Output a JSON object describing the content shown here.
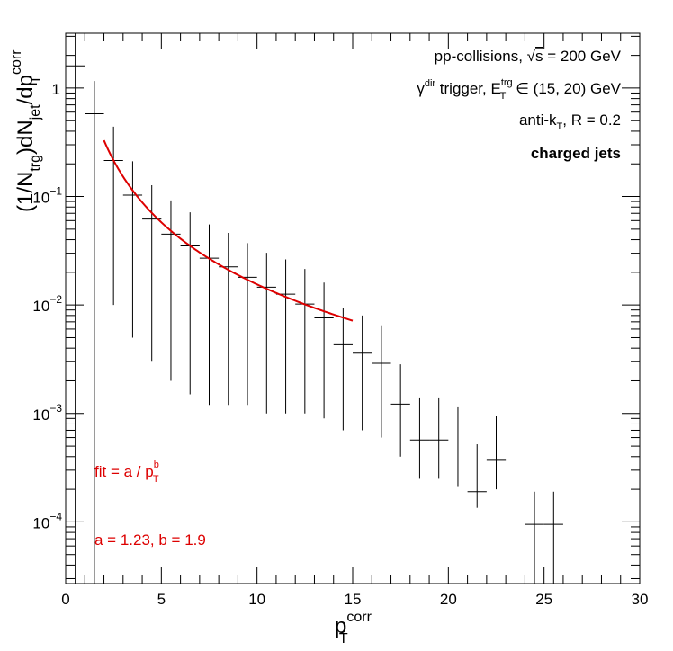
{
  "chart_data": {
    "type": "scatter",
    "xlim": [
      0,
      30
    ],
    "ylim": [
      2.7e-05,
      3.2
    ],
    "y_scale": "log",
    "grid": false,
    "x_ticks": [
      0,
      5,
      10,
      15,
      20,
      25,
      30
    ],
    "x_tick_labels": [
      "0",
      "5",
      "10",
      "15",
      "20",
      "25",
      "30"
    ],
    "y_ticks": [
      0.0001,
      0.001,
      0.01,
      0.1,
      1
    ],
    "y_tick_labels": [
      {
        "base": "10",
        "exp": "−4"
      },
      {
        "base": "10",
        "exp": "−3"
      },
      {
        "base": "10",
        "exp": "−2"
      },
      {
        "base": "10",
        "exp": "−1"
      },
      {
        "base": "1",
        "exp": ""
      }
    ],
    "xlabel": {
      "main": "p",
      "sub": "T",
      "sup": "corr"
    },
    "ylabel": {
      "p1": "(1/N",
      "s1": "trg",
      "p2": ")dN",
      "s2": "jet",
      "p3": "/dp",
      "s3": "T",
      "sup": "corr"
    },
    "series": [
      {
        "marker": "cross",
        "color": "#000000",
        "points": [
          {
            "x": 0.5,
            "y": 1.6,
            "xerr": 0.5,
            "yerr": [
              1.6,
              1.6
            ]
          },
          {
            "x": 1.5,
            "y": 0.58,
            "xerr": 0.5,
            "yerr": [
              0.58,
              0.58
            ]
          },
          {
            "x": 2.5,
            "y": 0.215,
            "xerr": 0.5,
            "yerr": [
              0.205,
              0.226
            ]
          },
          {
            "x": 3.5,
            "y": 0.103,
            "xerr": 0.5,
            "yerr": [
              0.098,
              0.108
            ]
          },
          {
            "x": 4.5,
            "y": 0.062,
            "xerr": 0.5,
            "yerr": [
              0.059,
              0.065
            ]
          },
          {
            "x": 5.5,
            "y": 0.045,
            "xerr": 0.5,
            "yerr": [
              0.043,
              0.047
            ]
          },
          {
            "x": 6.5,
            "y": 0.035,
            "xerr": 0.5,
            "yerr": [
              0.0335,
              0.0365
            ]
          },
          {
            "x": 7.5,
            "y": 0.027,
            "xerr": 0.5,
            "yerr": [
              0.0258,
              0.0282
            ]
          },
          {
            "x": 8.5,
            "y": 0.0225,
            "xerr": 0.5,
            "yerr": [
              0.0213,
              0.0237
            ]
          },
          {
            "x": 9.5,
            "y": 0.018,
            "xerr": 0.5,
            "yerr": [
              0.0168,
              0.0192
            ]
          },
          {
            "x": 10.5,
            "y": 0.0146,
            "xerr": 0.5,
            "yerr": [
              0.0136,
              0.0157
            ]
          },
          {
            "x": 11.5,
            "y": 0.0126,
            "xerr": 0.5,
            "yerr": [
              0.0116,
              0.0137
            ]
          },
          {
            "x": 12.5,
            "y": 0.0102,
            "xerr": 0.5,
            "yerr": [
              0.0092,
              0.0113
            ]
          },
          {
            "x": 13.5,
            "y": 0.0076,
            "xerr": 0.5,
            "yerr": [
              0.0067,
              0.0085
            ]
          },
          {
            "x": 14.5,
            "y": 0.0043,
            "xerr": 0.5,
            "yerr": [
              0.0036,
              0.0051
            ]
          },
          {
            "x": 15.5,
            "y": 0.0036,
            "xerr": 0.5,
            "yerr": [
              0.0029,
              0.0044
            ]
          },
          {
            "x": 16.5,
            "y": 0.0029,
            "xerr": 0.5,
            "yerr": [
              0.0023,
              0.0036
            ]
          },
          {
            "x": 17.5,
            "y": 0.00122,
            "xerr": 0.5,
            "yerr": [
              0.00082,
              0.00162
            ]
          },
          {
            "x": 18.5,
            "y": 0.00057,
            "xerr": 0.5,
            "yerr": [
              0.00032,
              0.00081
            ]
          },
          {
            "x": 19.5,
            "y": 0.00057,
            "xerr": 0.5,
            "yerr": [
              0.00032,
              0.00081
            ]
          },
          {
            "x": 20.5,
            "y": 0.00046,
            "xerr": 0.5,
            "yerr": [
              0.00025,
              0.00068
            ]
          },
          {
            "x": 21.5,
            "y": 0.00019,
            "xerr": 0.5,
            "yerr": [
              5.5e-05,
              0.00033
            ]
          },
          {
            "x": 22.5,
            "y": 0.00037,
            "xerr": 0.5,
            "yerr": [
              0.00017,
              0.00057
            ]
          },
          {
            "x": 24.5,
            "y": 9.5e-05,
            "xerr": 0.5,
            "yerr": [
              9.5e-05,
              9.5e-05
            ]
          },
          {
            "x": 25.5,
            "y": 9.5e-05,
            "xerr": 0.5,
            "yerr": [
              9.5e-05,
              9.5e-05
            ]
          }
        ]
      }
    ],
    "fit": {
      "color": "#dd0000",
      "a": 1.23,
      "b": 1.9,
      "x_range": [
        2,
        15
      ],
      "formula_label": {
        "text": "fit = a / p",
        "sub": "T",
        "sup": "b"
      },
      "params_label": "a = 1.23, b = 1.9"
    },
    "annotations": {
      "line1": {
        "pre": "pp-collisions, ",
        "sqrt": "√",
        "s": "s",
        "post": " = 200 GeV"
      },
      "line2": {
        "gamma": "γ",
        "gamma_sup": "dir",
        "mid": " trigger, E",
        "e_sup": "trg",
        "e_sub": "T",
        "post": " ∈ (15, 20) GeV"
      },
      "line3": {
        "pre": "anti-k",
        "sub": "T",
        "post": ", R = 0.2"
      },
      "line4": "charged jets"
    }
  }
}
